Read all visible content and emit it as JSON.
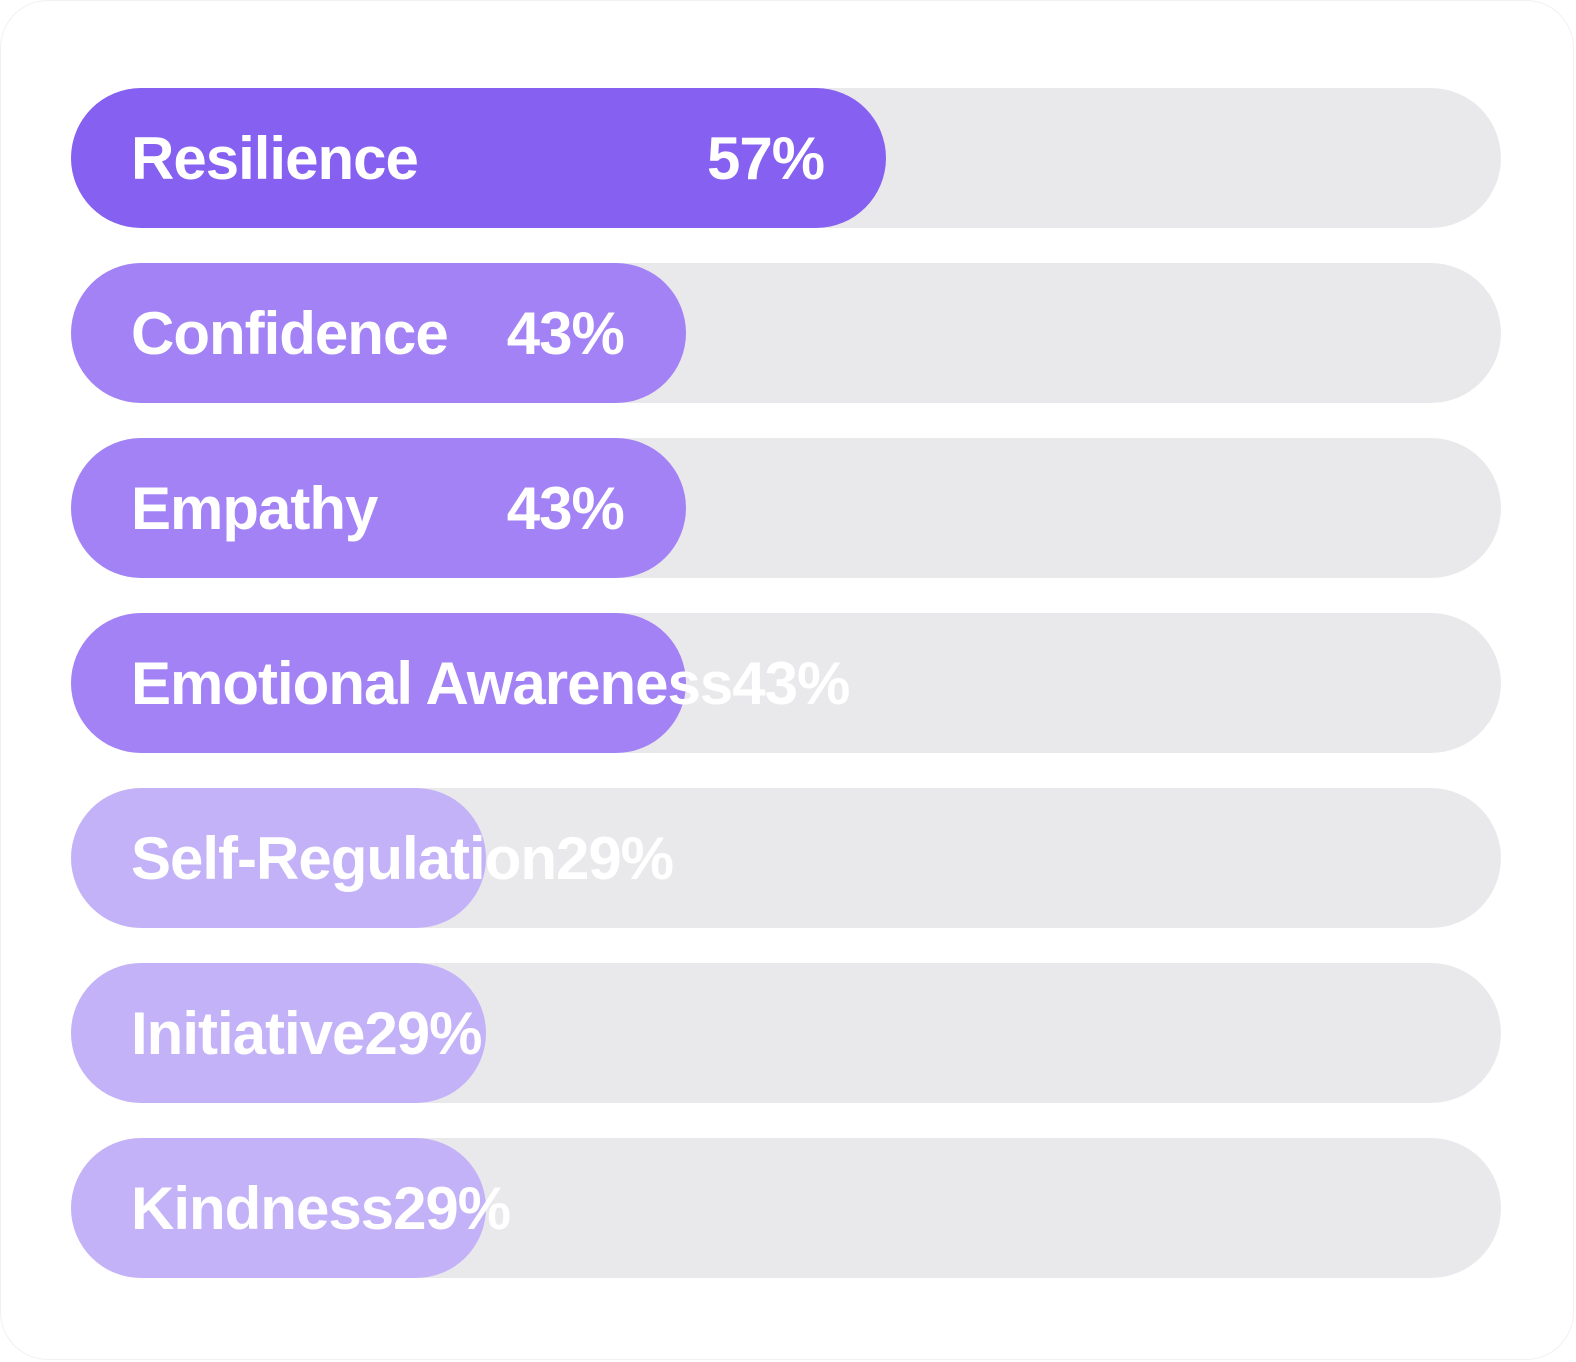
{
  "chart_data": {
    "type": "bar",
    "orientation": "horizontal",
    "title": "",
    "xlabel": "",
    "ylabel": "",
    "xlim": [
      0,
      100
    ],
    "grid": false,
    "legend": "none",
    "categories": [
      "Resilience",
      "Confidence",
      "Empathy",
      "Emotional Awareness",
      "Self-Regulation",
      "Initiative",
      "Kindness"
    ],
    "values": [
      57,
      43,
      43,
      43,
      29,
      29,
      29
    ],
    "value_labels": [
      "57%",
      "43%",
      "43%",
      "43%",
      "29%",
      "29%",
      "29%"
    ],
    "colors": [
      "#8660f0",
      "#a282f5",
      "#a282f5",
      "#a282f5",
      "#c4b2f8",
      "#c4b2f8",
      "#c4b2f8"
    ],
    "track_color": "#e9e9ec",
    "label_color": "#ffffff"
  }
}
